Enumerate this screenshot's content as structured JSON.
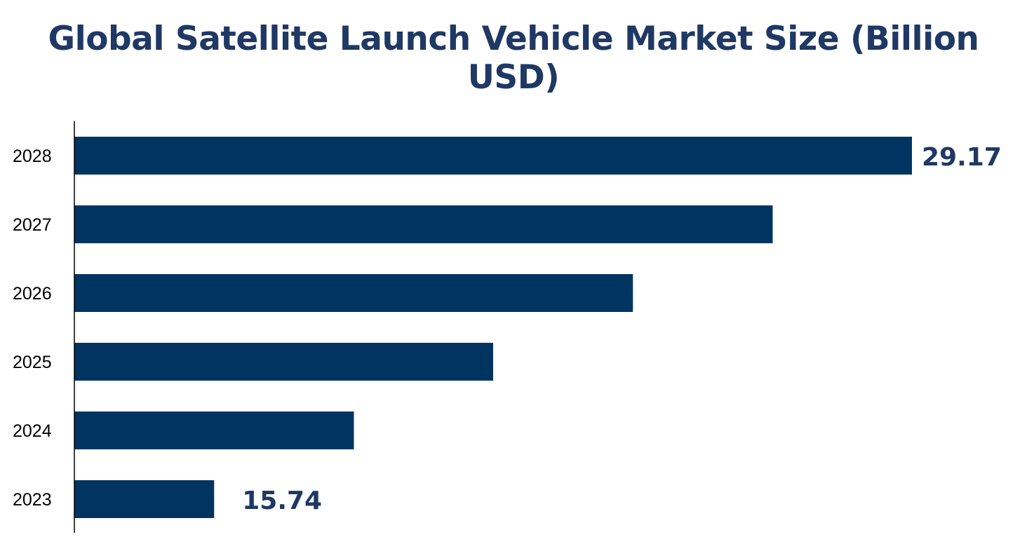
{
  "chart_data": {
    "type": "bar",
    "orientation": "horizontal",
    "title": "Global Satellite Launch Vehicle Market Size (Billion USD)",
    "categories": [
      "2023",
      "2024",
      "2025",
      "2026",
      "2027",
      "2028"
    ],
    "values": [
      15.74,
      18.43,
      21.11,
      23.8,
      26.49,
      29.17
    ],
    "data_labels": {
      "2023": "15.74",
      "2028": "29.17"
    },
    "xlim": [
      13.05,
      29.17
    ],
    "xlabel": "",
    "ylabel": "",
    "grid": false,
    "legend": "none",
    "colors": {
      "bar": "#003562",
      "label": "#1f3864",
      "title": "#1f3864"
    }
  }
}
